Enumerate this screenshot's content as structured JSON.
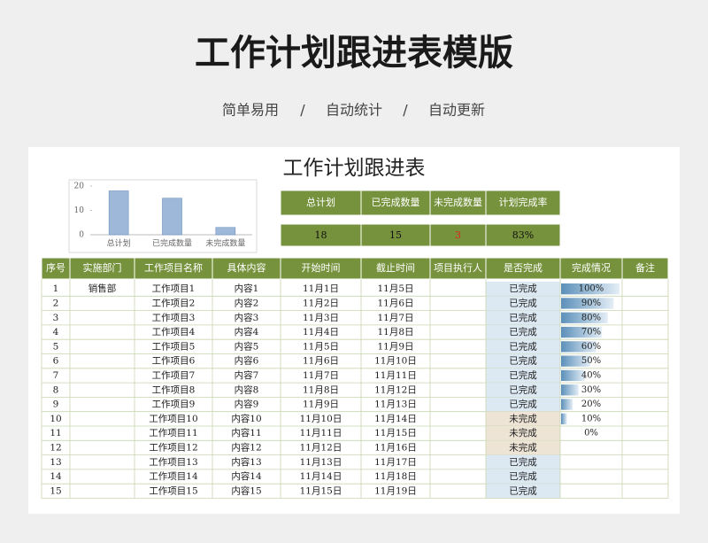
{
  "header": {
    "title": "工作计划跟进表模版",
    "subtitle": [
      "简单易用",
      "/",
      "自动统计",
      "/",
      "自动更新"
    ]
  },
  "sheet": {
    "title": "工作计划跟进表",
    "mini_chart": {
      "type": "bar",
      "categories": [
        "总计划",
        "已完成数量",
        "未完成数量"
      ],
      "values": [
        18,
        15,
        3
      ],
      "ylim": [
        0,
        20
      ],
      "yticks": [
        0,
        10,
        20
      ],
      "color": "#9db8d9"
    },
    "summary": {
      "headers": [
        "总计划",
        "已完成数量",
        "未完成数量",
        "计划完成率"
      ],
      "values": [
        18,
        15,
        3,
        "83%"
      ]
    },
    "table": {
      "headers": [
        "序号",
        "实施部门",
        "工作项目名称",
        "具体内容",
        "开始时间",
        "截止时间",
        "项目执行人",
        "是否完成",
        "完成情况",
        "备注"
      ],
      "rows": [
        [
          1,
          "销售部",
          "工作项目1",
          "内容1",
          "11月1日",
          "11月5日",
          null,
          "已完成",
          null,
          null
        ],
        [
          2,
          null,
          "工作项目2",
          "内容2",
          "11月2日",
          "11月6日",
          null,
          "已完成",
          null,
          null
        ],
        [
          3,
          null,
          "工作项目3",
          "内容3",
          "11月3日",
          "11月7日",
          null,
          "已完成",
          null,
          null
        ],
        [
          4,
          null,
          "工作项目4",
          "内容4",
          "11月4日",
          "11月8日",
          null,
          "已完成",
          null,
          null
        ],
        [
          5,
          null,
          "工作项目5",
          "内容5",
          "11月5日",
          "11月9日",
          null,
          "已完成",
          null,
          null
        ],
        [
          6,
          null,
          "工作项目6",
          "内容6",
          "11月6日",
          "11月10日",
          null,
          "已完成",
          null,
          null
        ],
        [
          7,
          null,
          "工作项目7",
          "内容7",
          "11月7日",
          "11月11日",
          null,
          "已完成",
          null,
          null
        ],
        [
          8,
          null,
          "工作项目8",
          "内容8",
          "11月8日",
          "11月12日",
          null,
          "已完成",
          null,
          null
        ],
        [
          9,
          null,
          "工作项目9",
          "内容9",
          "11月9日",
          "11月13日",
          null,
          "已完成",
          null,
          null
        ],
        [
          10,
          null,
          "工作项目10",
          "内容10",
          "11月10日",
          "11月14日",
          null,
          "未完成",
          null,
          null
        ],
        [
          11,
          null,
          "工作项目11",
          "内容11",
          "11月11日",
          "11月15日",
          null,
          "未完成",
          null,
          null
        ],
        [
          12,
          null,
          "工作项目12",
          "内容12",
          "11月12日",
          "11月16日",
          null,
          "未完成",
          null,
          null
        ],
        [
          13,
          null,
          "工作项目13",
          "内容13",
          "11月13日",
          "11月17日",
          null,
          "已完成",
          null,
          null
        ],
        [
          14,
          null,
          "工作项目14",
          "内容14",
          "11月14日",
          "11月18日",
          null,
          "已完成",
          null,
          null
        ],
        [
          15,
          null,
          "工作项目15",
          "内容15",
          "11月15日",
          "11月19日",
          null,
          "已完成",
          null,
          null
        ]
      ],
      "progress": [
        {
          "value": 100,
          "label": "100%"
        },
        {
          "value": 90,
          "label": "90%"
        },
        {
          "value": 80,
          "label": "80%"
        },
        {
          "value": 70,
          "label": "70%"
        },
        {
          "value": 60,
          "label": "60%"
        },
        {
          "value": 50,
          "label": "50%"
        },
        {
          "value": 40,
          "label": "40%"
        },
        {
          "value": 30,
          "label": "30%"
        },
        {
          "value": 20,
          "label": "20%"
        },
        {
          "value": 10,
          "label": "10%"
        },
        {
          "value": 0,
          "label": "0%"
        },
        null,
        null,
        null,
        null
      ]
    }
  }
}
